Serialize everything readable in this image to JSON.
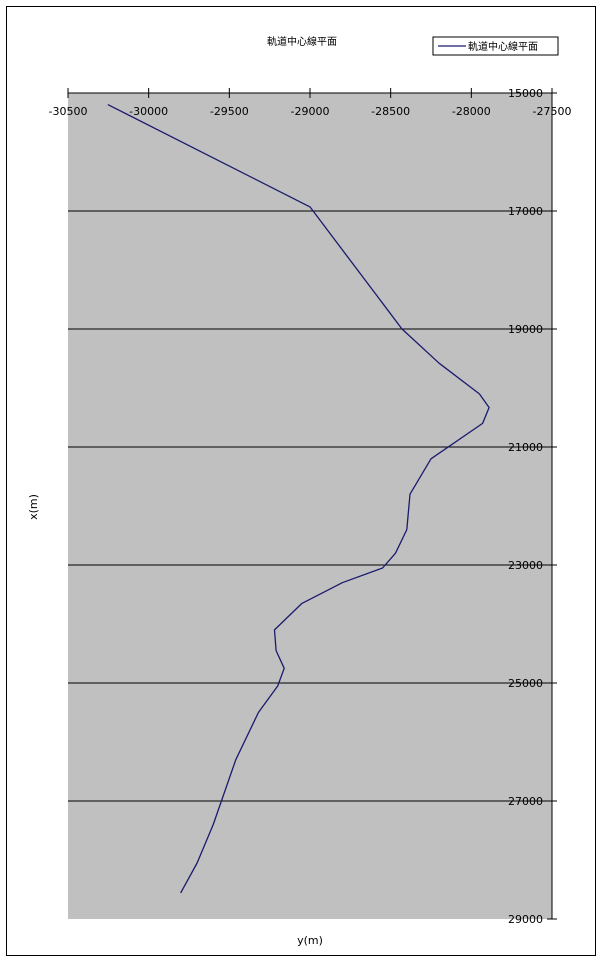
{
  "chart_data": {
    "type": "line",
    "title": "軌道中心線平面",
    "xlabel": "y(m)",
    "ylabel": "x(m)",
    "x_axis": {
      "min": -30500,
      "max": -27500,
      "ticks": [
        -30500,
        -30000,
        -29500,
        -29000,
        -28500,
        -28000,
        -27500
      ],
      "position": "top"
    },
    "y_axis": {
      "min": 15000,
      "max": 29000,
      "reversed": true,
      "ticks": [
        15000,
        17000,
        19000,
        21000,
        23000,
        25000,
        27000,
        29000
      ],
      "position": "right"
    },
    "plot_background": "#c0c0c0",
    "gridlines": "horizontal major",
    "legend": {
      "position": "top-right",
      "entries": [
        "軌道中心線平面"
      ]
    },
    "series": [
      {
        "name": "軌道中心線平面",
        "color": "#1a1a6e",
        "points": [
          [
            -30250,
            15200
          ],
          [
            -29000,
            16930
          ],
          [
            -28430,
            19000
          ],
          [
            -28200,
            19580
          ],
          [
            -27950,
            20100
          ],
          [
            -27890,
            20330
          ],
          [
            -27930,
            20600
          ],
          [
            -28250,
            21200
          ],
          [
            -28380,
            21800
          ],
          [
            -28400,
            22400
          ],
          [
            -28470,
            22800
          ],
          [
            -28550,
            23050
          ],
          [
            -28800,
            23300
          ],
          [
            -29050,
            23650
          ],
          [
            -29220,
            24100
          ],
          [
            -29210,
            24450
          ],
          [
            -29160,
            24750
          ],
          [
            -29200,
            25050
          ],
          [
            -29320,
            25500
          ],
          [
            -29460,
            26300
          ],
          [
            -29600,
            27400
          ],
          [
            -29700,
            28050
          ],
          [
            -29800,
            28550
          ]
        ]
      }
    ]
  }
}
